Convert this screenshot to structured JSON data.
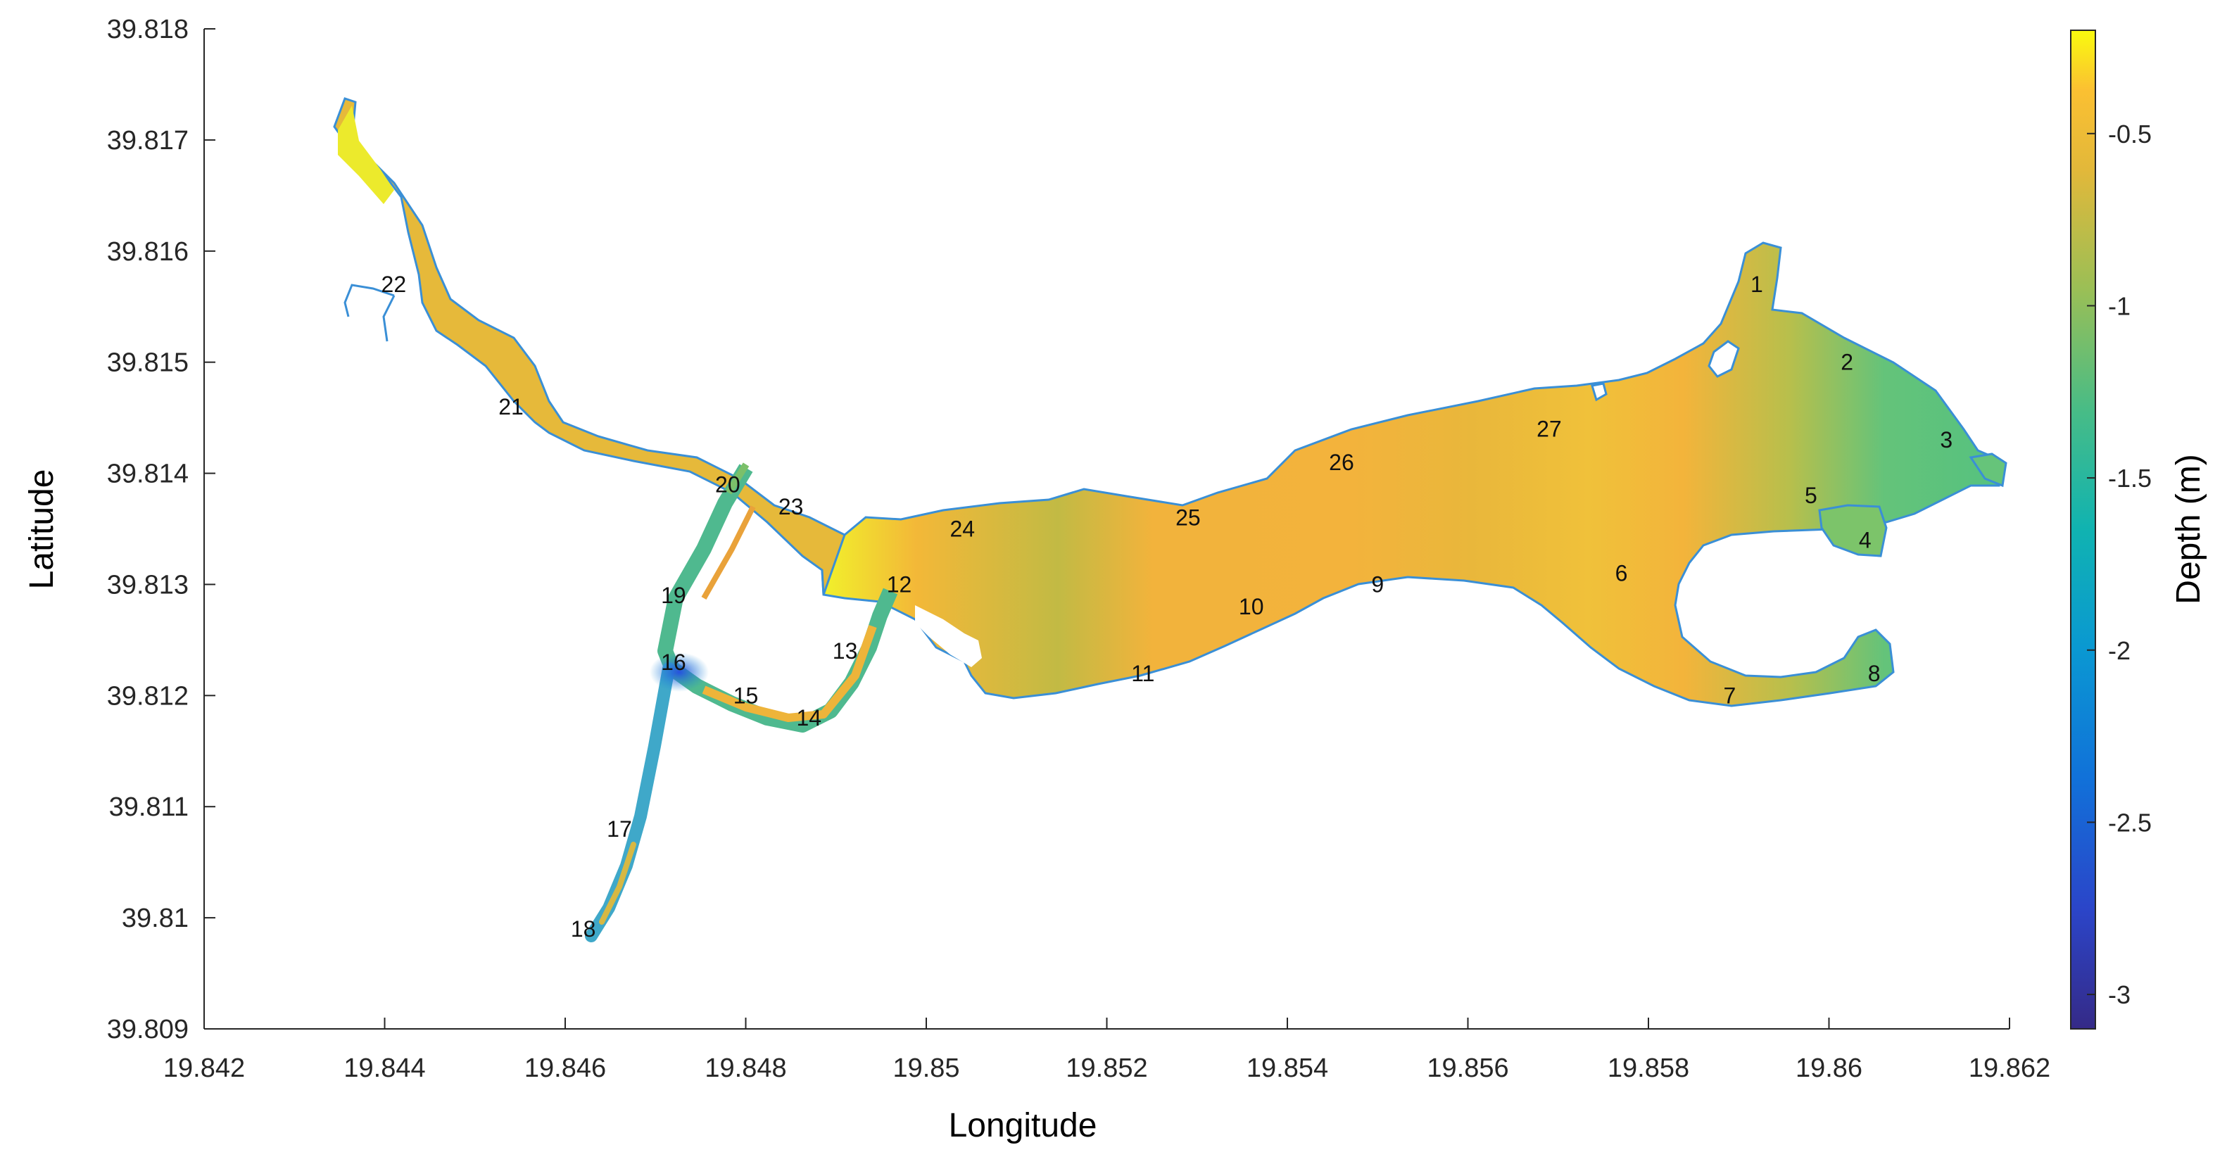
{
  "chart_data": {
    "type": "heatmap",
    "title": "",
    "xlabel": "Longitude",
    "ylabel": "Latitude",
    "xlim": [
      19.842,
      19.862
    ],
    "ylim": [
      39.809,
      39.818
    ],
    "xticks": [
      "19.842",
      "19.844",
      "19.846",
      "19.848",
      "19.85",
      "19.852",
      "19.854",
      "19.856",
      "19.858",
      "19.86",
      "19.862"
    ],
    "yticks": [
      "39.809",
      "39.81",
      "39.811",
      "39.812",
      "39.813",
      "39.814",
      "39.815",
      "39.816",
      "39.817",
      "39.818"
    ],
    "grid": false,
    "colorbar": {
      "label": "Depth (m)",
      "range": [
        -3.1,
        -0.2
      ],
      "ticks": [
        "-0.5",
        "-1",
        "-1.5",
        "-2",
        "-2.5",
        "-3"
      ],
      "colormap": "parula",
      "placement": "right"
    },
    "outline_color": "#3a8fd6",
    "stations": [
      {
        "id": "1",
        "lon": 19.8592,
        "lat": 39.8157
      },
      {
        "id": "2",
        "lon": 19.8602,
        "lat": 39.815
      },
      {
        "id": "3",
        "lon": 19.8613,
        "lat": 39.8143
      },
      {
        "id": "4",
        "lon": 19.8604,
        "lat": 39.8134
      },
      {
        "id": "5",
        "lon": 19.8598,
        "lat": 39.8138
      },
      {
        "id": "6",
        "lon": 19.8577,
        "lat": 39.8131
      },
      {
        "id": "7",
        "lon": 19.8589,
        "lat": 39.812
      },
      {
        "id": "8",
        "lon": 19.8605,
        "lat": 39.8122
      },
      {
        "id": "9",
        "lon": 19.855,
        "lat": 39.813
      },
      {
        "id": "10",
        "lon": 19.8536,
        "lat": 39.8128
      },
      {
        "id": "11",
        "lon": 19.8524,
        "lat": 39.8122
      },
      {
        "id": "12",
        "lon": 19.8497,
        "lat": 39.813
      },
      {
        "id": "13",
        "lon": 19.8491,
        "lat": 39.8124
      },
      {
        "id": "14",
        "lon": 19.8487,
        "lat": 39.8118
      },
      {
        "id": "15",
        "lon": 19.848,
        "lat": 39.812
      },
      {
        "id": "16",
        "lon": 19.8472,
        "lat": 39.8123
      },
      {
        "id": "17",
        "lon": 19.8466,
        "lat": 39.8108
      },
      {
        "id": "18",
        "lon": 19.8462,
        "lat": 39.8099
      },
      {
        "id": "19",
        "lon": 19.8472,
        "lat": 39.8129
      },
      {
        "id": "20",
        "lon": 19.8478,
        "lat": 39.8139
      },
      {
        "id": "21",
        "lon": 19.8454,
        "lat": 39.8146
      },
      {
        "id": "22",
        "lon": 19.8441,
        "lat": 39.8157
      },
      {
        "id": "23",
        "lon": 19.8485,
        "lat": 39.8137
      },
      {
        "id": "24",
        "lon": 19.8504,
        "lat": 39.8135
      },
      {
        "id": "25",
        "lon": 19.8529,
        "lat": 39.8136
      },
      {
        "id": "26",
        "lon": 19.8546,
        "lat": 39.8141
      },
      {
        "id": "27",
        "lon": 19.8569,
        "lat": 39.8144
      }
    ]
  }
}
